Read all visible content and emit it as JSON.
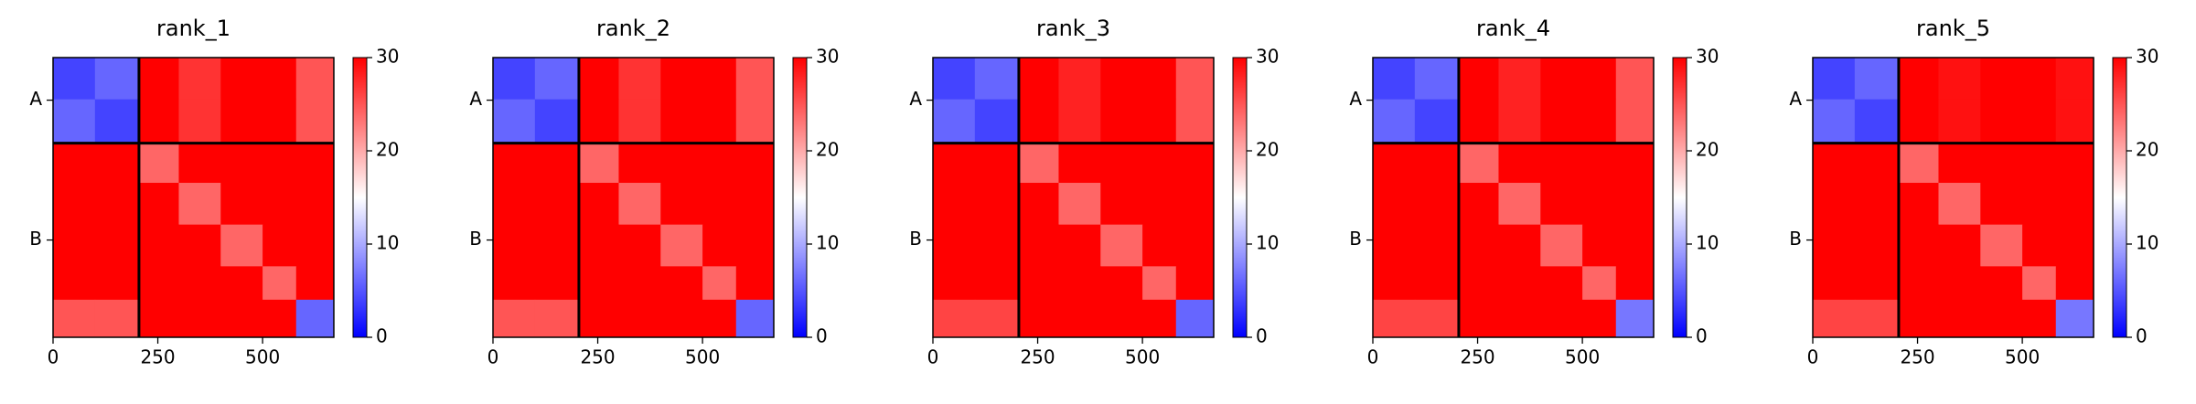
{
  "chart_data": [
    {
      "type": "heatmap",
      "title": "rank_1",
      "edges": [
        0,
        100,
        205,
        300,
        400,
        500,
        580,
        670
      ],
      "values": [
        [
          4,
          6,
          30,
          27,
          30,
          30,
          25
        ],
        [
          6,
          4,
          30,
          27,
          30,
          30,
          25
        ],
        [
          30,
          30,
          24,
          30,
          30,
          30,
          30
        ],
        [
          30,
          30,
          30,
          24,
          30,
          30,
          30
        ],
        [
          30,
          30,
          30,
          30,
          24,
          30,
          30
        ],
        [
          30,
          30,
          30,
          30,
          30,
          24,
          30
        ],
        [
          25,
          25,
          30,
          30,
          30,
          30,
          6
        ]
      ],
      "xlim": [
        0,
        670
      ],
      "ylim": [
        670,
        0
      ],
      "xticks": [
        0,
        250,
        500
      ],
      "yticks": [
        {
          "value": 102,
          "label": "A"
        },
        {
          "value": 437,
          "label": "B"
        }
      ],
      "chain_breaks": [
        205
      ],
      "clim": [
        0,
        30
      ],
      "cticks": [
        0,
        10,
        20,
        30
      ],
      "colormap": "bwr"
    },
    {
      "type": "heatmap",
      "title": "rank_2",
      "edges": [
        0,
        100,
        205,
        300,
        400,
        500,
        580,
        670
      ],
      "values": [
        [
          4,
          6,
          30,
          27,
          30,
          30,
          25
        ],
        [
          6,
          4,
          30,
          27,
          30,
          30,
          25
        ],
        [
          30,
          30,
          24,
          30,
          30,
          30,
          30
        ],
        [
          30,
          30,
          30,
          24,
          30,
          30,
          30
        ],
        [
          30,
          30,
          30,
          30,
          24,
          30,
          30
        ],
        [
          30,
          30,
          30,
          30,
          30,
          24,
          30
        ],
        [
          25,
          25,
          30,
          30,
          30,
          30,
          6
        ]
      ],
      "xlim": [
        0,
        670
      ],
      "ylim": [
        670,
        0
      ],
      "xticks": [
        0,
        250,
        500
      ],
      "yticks": [
        {
          "value": 102,
          "label": "A"
        },
        {
          "value": 437,
          "label": "B"
        }
      ],
      "chain_breaks": [
        205
      ],
      "clim": [
        0,
        30
      ],
      "cticks": [
        0,
        10,
        20,
        30
      ],
      "colormap": "bwr"
    },
    {
      "type": "heatmap",
      "title": "rank_3",
      "edges": [
        0,
        100,
        205,
        300,
        400,
        500,
        580,
        670
      ],
      "values": [
        [
          4,
          6,
          30,
          28,
          30,
          30,
          25
        ],
        [
          6,
          4,
          30,
          28,
          30,
          30,
          25
        ],
        [
          30,
          30,
          24,
          30,
          30,
          30,
          30
        ],
        [
          30,
          30,
          30,
          24,
          30,
          30,
          30
        ],
        [
          30,
          30,
          30,
          30,
          24,
          30,
          30
        ],
        [
          30,
          30,
          30,
          30,
          30,
          24,
          30
        ],
        [
          26,
          26,
          30,
          30,
          30,
          30,
          6
        ]
      ],
      "xlim": [
        0,
        670
      ],
      "ylim": [
        670,
        0
      ],
      "xticks": [
        0,
        250,
        500
      ],
      "yticks": [
        {
          "value": 102,
          "label": "A"
        },
        {
          "value": 437,
          "label": "B"
        }
      ],
      "chain_breaks": [
        205
      ],
      "clim": [
        0,
        30
      ],
      "cticks": [
        0,
        10,
        20,
        30
      ],
      "colormap": "bwr"
    },
    {
      "type": "heatmap",
      "title": "rank_4",
      "edges": [
        0,
        100,
        205,
        300,
        400,
        500,
        580,
        670
      ],
      "values": [
        [
          4,
          6,
          30,
          28,
          30,
          30,
          25
        ],
        [
          6,
          4,
          30,
          28,
          30,
          30,
          25
        ],
        [
          30,
          30,
          24,
          30,
          30,
          30,
          30
        ],
        [
          30,
          30,
          30,
          24,
          30,
          30,
          30
        ],
        [
          30,
          30,
          30,
          30,
          24,
          30,
          30
        ],
        [
          30,
          30,
          30,
          30,
          30,
          24,
          30
        ],
        [
          26,
          26,
          30,
          30,
          30,
          30,
          7
        ]
      ],
      "xlim": [
        0,
        670
      ],
      "ylim": [
        670,
        0
      ],
      "xticks": [
        0,
        250,
        500
      ],
      "yticks": [
        {
          "value": 102,
          "label": "A"
        },
        {
          "value": 437,
          "label": "B"
        }
      ],
      "chain_breaks": [
        205
      ],
      "clim": [
        0,
        30
      ],
      "cticks": [
        0,
        10,
        20,
        30
      ],
      "colormap": "bwr"
    },
    {
      "type": "heatmap",
      "title": "rank_5",
      "edges": [
        0,
        100,
        205,
        300,
        400,
        500,
        580,
        670
      ],
      "values": [
        [
          4,
          6,
          30,
          29,
          30,
          30,
          29
        ],
        [
          6,
          4,
          30,
          29,
          30,
          30,
          29
        ],
        [
          30,
          30,
          24,
          30,
          30,
          30,
          30
        ],
        [
          30,
          30,
          30,
          24,
          30,
          30,
          30
        ],
        [
          30,
          30,
          30,
          30,
          24,
          30,
          30
        ],
        [
          30,
          30,
          30,
          30,
          30,
          24,
          30
        ],
        [
          26,
          26,
          30,
          30,
          30,
          30,
          7
        ]
      ],
      "xlim": [
        0,
        670
      ],
      "ylim": [
        670,
        0
      ],
      "xticks": [
        0,
        250,
        500
      ],
      "yticks": [
        {
          "value": 102,
          "label": "A"
        },
        {
          "value": 437,
          "label": "B"
        }
      ],
      "chain_breaks": [
        205
      ],
      "clim": [
        0,
        30
      ],
      "cticks": [
        0,
        10,
        20,
        30
      ],
      "colormap": "bwr"
    }
  ]
}
